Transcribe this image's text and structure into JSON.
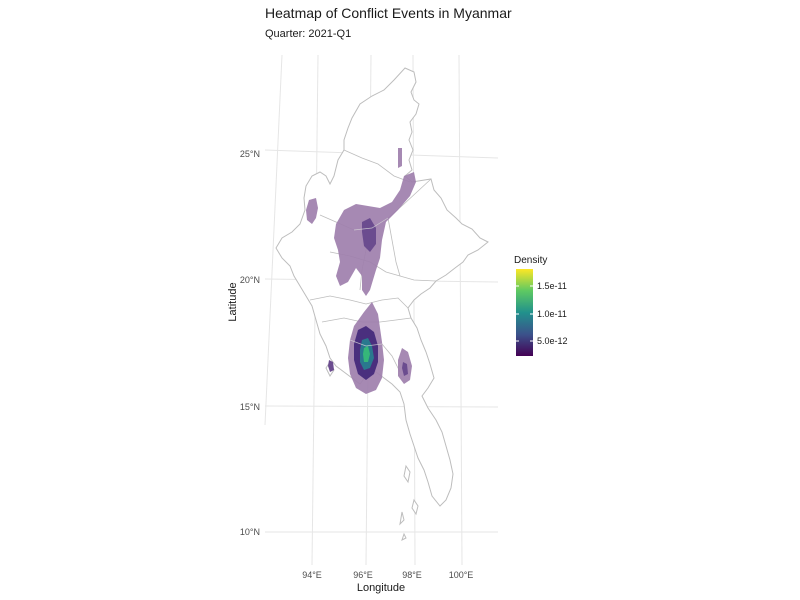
{
  "chart_data": {
    "type": "heatmap",
    "title": "Heatmap of Conflict Events in Myanmar",
    "subtitle": "Quarter: 2021-Q1",
    "xlabel": "Longitude",
    "ylabel": "Latitude",
    "x_ticks": [
      "94°E",
      "96°E",
      "98°E",
      "100°E"
    ],
    "x_tick_values": [
      94,
      96,
      98,
      100
    ],
    "y_ticks": [
      "25°N",
      "20°N",
      "15°N",
      "10°N"
    ],
    "y_tick_values": [
      25,
      20,
      15,
      10
    ],
    "xlim": [
      92.2,
      101.5
    ],
    "ylim": [
      9.0,
      28.6
    ],
    "grid": true,
    "legend": {
      "title": "Density",
      "placement": "right",
      "palette": "viridis",
      "min": 2.5e-12,
      "max": 1.8e-11,
      "breaks": [
        {
          "label": "1.5e-11",
          "value": 1.5e-11
        },
        {
          "label": "1.0e-11",
          "value": 1e-11
        },
        {
          "label": "5.0e-12",
          "value": 5e-12
        }
      ]
    },
    "hotspots": [
      {
        "lon": 96.2,
        "lat": 16.9,
        "level": "highest"
      },
      {
        "lon": 96.0,
        "lat": 21.5,
        "level": "medium"
      },
      {
        "lon": 97.6,
        "lat": 16.5,
        "level": "low"
      }
    ],
    "colors": {
      "low": "#9e7fad",
      "mid": "#453781",
      "high": "#35b779",
      "border": "#bdbdbd",
      "grid": "#e6e6e6"
    }
  }
}
